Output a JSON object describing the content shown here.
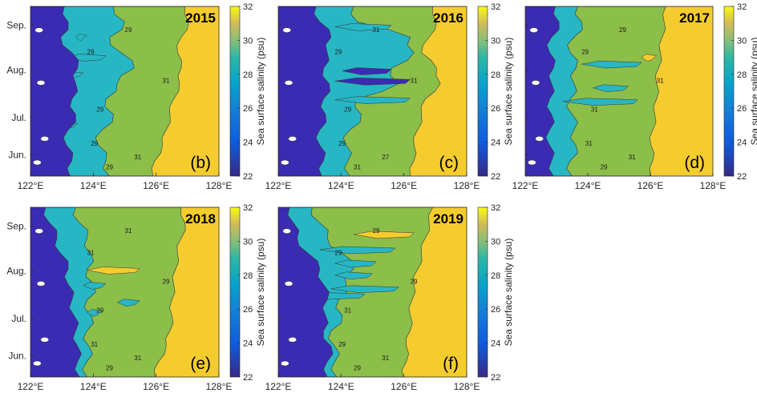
{
  "chart_data": {
    "type": "heatmap",
    "colors": {
      "low": "#3b2bb3",
      "mid_low": "#27b7c4",
      "mid": "#8cbe4a",
      "high": "#f5cc2e"
    },
    "colorbar": {
      "label": "Sea surface salinity (psu)",
      "range": [
        22,
        32
      ],
      "ticks": [
        "22",
        "24",
        "26",
        "28",
        "30",
        "32"
      ]
    },
    "x_ticks": [
      "122°E",
      "124°E",
      "126°E",
      "128°E"
    ],
    "y_ticks": [
      "Sep.",
      "Aug.",
      "Jul.",
      "Jun."
    ],
    "xlim": [
      122,
      128
    ],
    "panels": [
      {
        "year": "2015",
        "letter": "(b)",
        "contours": [
          "29",
          "29",
          "29",
          "29",
          "31",
          "29",
          "31"
        ]
      },
      {
        "year": "2016",
        "letter": "(c)",
        "contours": [
          "29",
          "29",
          "29",
          "31",
          "27",
          "31",
          "31"
        ]
      },
      {
        "year": "2017",
        "letter": "(d)",
        "contours": [
          "29",
          "31",
          "31",
          "29",
          "31",
          "29",
          "31"
        ]
      },
      {
        "year": "2018",
        "letter": "(e)",
        "contours": [
          "31",
          "29",
          "31",
          "29",
          "31",
          "31",
          "29"
        ]
      },
      {
        "year": "2019",
        "letter": "(f)",
        "contours": [
          "29",
          "31",
          "29",
          "29",
          "31",
          "29",
          "29"
        ]
      }
    ]
  }
}
